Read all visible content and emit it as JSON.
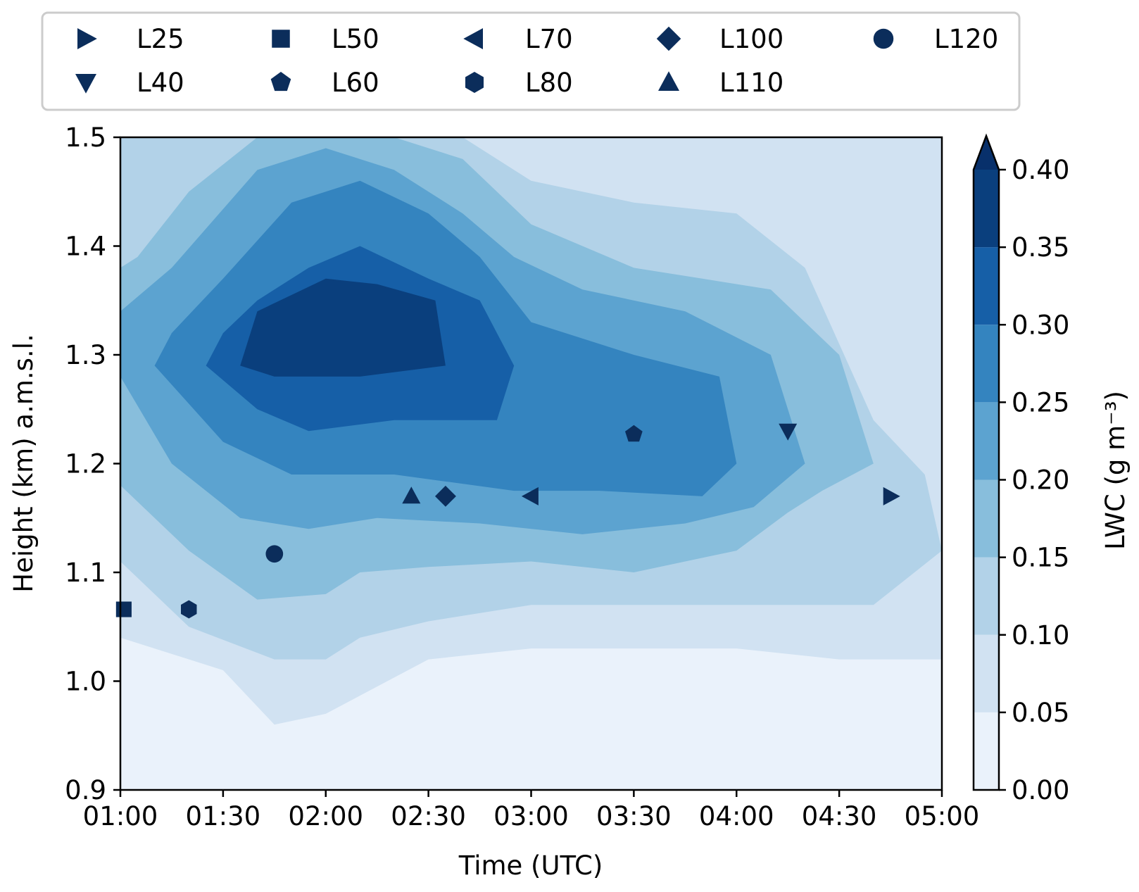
{
  "chart_data": {
    "type": "contour",
    "xlabel": "Time (UTC)",
    "ylabel": "Height (km) a.m.s.l.",
    "colorbar_label": "LWC (g m⁻³)",
    "x_ticks": [
      "01:00",
      "01:30",
      "02:00",
      "02:30",
      "03:00",
      "03:30",
      "04:00",
      "04:30",
      "05:00"
    ],
    "xlim": [
      "01:00",
      "05:00"
    ],
    "y_ticks": [
      "0.9",
      "1.0",
      "1.1",
      "1.2",
      "1.3",
      "1.4",
      "1.5"
    ],
    "ylim": [
      0.9,
      1.5
    ],
    "colorbar": {
      "levels": [
        0.0,
        0.05,
        0.1,
        0.15,
        0.2,
        0.25,
        0.3,
        0.35,
        0.4
      ],
      "tick_labels": [
        "0.00",
        "0.05",
        "0.10",
        "0.15",
        "0.20",
        "0.25",
        "0.30",
        "0.35",
        "0.40"
      ],
      "colors": [
        "#eaf2fb",
        "#d1e2f2",
        "#b2d2e8",
        "#88bedc",
        "#5ca3d0",
        "#3484bf",
        "#165fa7",
        "#0a3f7d"
      ],
      "extend": "max"
    },
    "marker_color": "#0b2d5b",
    "legend": {
      "placement": "top",
      "entries": [
        {
          "name": "L25",
          "marker": "triangle-right"
        },
        {
          "name": "L40",
          "marker": "triangle-down"
        },
        {
          "name": "L50",
          "marker": "square"
        },
        {
          "name": "L60",
          "marker": "pentagon"
        },
        {
          "name": "L70",
          "marker": "triangle-left"
        },
        {
          "name": "L80",
          "marker": "hexagon"
        },
        {
          "name": "L100",
          "marker": "diamond"
        },
        {
          "name": "L110",
          "marker": "triangle-up"
        },
        {
          "name": "L120",
          "marker": "circle"
        }
      ]
    },
    "points": [
      {
        "name": "L25",
        "time": "04:45",
        "height": 1.17
      },
      {
        "name": "L40",
        "time": "04:15",
        "height": 1.23
      },
      {
        "name": "L50",
        "time": "01:01",
        "height": 1.066
      },
      {
        "name": "L60",
        "time": "03:30",
        "height": 1.227
      },
      {
        "name": "L70",
        "time": "03:00",
        "height": 1.17
      },
      {
        "name": "L80",
        "time": "01:20",
        "height": 1.066
      },
      {
        "name": "L100",
        "time": "02:35",
        "height": 1.17
      },
      {
        "name": "L110",
        "time": "02:25",
        "height": 1.17
      },
      {
        "name": "L120",
        "time": "01:45",
        "height": 1.117
      }
    ],
    "contours": [
      {
        "level": 0.05,
        "outline": [
          [
            "01:00",
            1.04
          ],
          [
            "01:30",
            1.01
          ],
          [
            "01:45",
            0.96
          ],
          [
            "02:00",
            0.97
          ],
          [
            "02:30",
            1.02
          ],
          [
            "03:00",
            1.03
          ],
          [
            "04:00",
            1.03
          ],
          [
            "04:30",
            1.02
          ],
          [
            "05:00",
            1.02
          ],
          [
            "05:00",
            1.5
          ],
          [
            "01:00",
            1.5
          ]
        ]
      },
      {
        "level": 0.1,
        "outline": [
          [
            "01:00",
            1.11
          ],
          [
            "01:20",
            1.05
          ],
          [
            "01:45",
            1.02
          ],
          [
            "02:00",
            1.02
          ],
          [
            "02:10",
            1.04
          ],
          [
            "02:30",
            1.055
          ],
          [
            "03:00",
            1.07
          ],
          [
            "03:30",
            1.07
          ],
          [
            "04:00",
            1.07
          ],
          [
            "04:40",
            1.07
          ],
          [
            "05:00",
            1.12
          ],
          [
            "04:55",
            1.19
          ],
          [
            "04:40",
            1.24
          ],
          [
            "04:20",
            1.38
          ],
          [
            "04:00",
            1.43
          ],
          [
            "03:30",
            1.44
          ],
          [
            "03:00",
            1.46
          ],
          [
            "02:40",
            1.5
          ],
          [
            "01:20",
            1.5
          ],
          [
            "01:00",
            1.5
          ]
        ]
      },
      {
        "level": 0.15,
        "outline": [
          [
            "01:00",
            1.18
          ],
          [
            "01:20",
            1.12
          ],
          [
            "01:40",
            1.075
          ],
          [
            "02:00",
            1.08
          ],
          [
            "02:10",
            1.1
          ],
          [
            "02:30",
            1.105
          ],
          [
            "03:00",
            1.11
          ],
          [
            "03:30",
            1.1
          ],
          [
            "04:00",
            1.12
          ],
          [
            "04:15",
            1.155
          ],
          [
            "04:25",
            1.175
          ],
          [
            "04:40",
            1.2
          ],
          [
            "04:30",
            1.3
          ],
          [
            "04:10",
            1.36
          ],
          [
            "03:50",
            1.37
          ],
          [
            "03:30",
            1.38
          ],
          [
            "03:00",
            1.42
          ],
          [
            "02:40",
            1.48
          ],
          [
            "02:20",
            1.5
          ],
          [
            "01:40",
            1.5
          ],
          [
            "01:20",
            1.45
          ],
          [
            "01:05",
            1.39
          ],
          [
            "01:00",
            1.38
          ]
        ]
      },
      {
        "level": 0.2,
        "outline": [
          [
            "01:00",
            1.28
          ],
          [
            "01:15",
            1.2
          ],
          [
            "01:35",
            1.15
          ],
          [
            "01:55",
            1.14
          ],
          [
            "02:15",
            1.15
          ],
          [
            "02:45",
            1.145
          ],
          [
            "03:15",
            1.135
          ],
          [
            "03:45",
            1.145
          ],
          [
            "04:05",
            1.16
          ],
          [
            "04:20",
            1.2
          ],
          [
            "04:10",
            1.3
          ],
          [
            "03:45",
            1.34
          ],
          [
            "03:15",
            1.36
          ],
          [
            "02:55",
            1.39
          ],
          [
            "02:40",
            1.43
          ],
          [
            "02:20",
            1.47
          ],
          [
            "02:00",
            1.49
          ],
          [
            "01:40",
            1.47
          ],
          [
            "01:15",
            1.38
          ],
          [
            "01:00",
            1.34
          ]
        ]
      },
      {
        "level": 0.25,
        "outline": [
          [
            "01:10",
            1.29
          ],
          [
            "01:30",
            1.22
          ],
          [
            "01:50",
            1.19
          ],
          [
            "02:20",
            1.19
          ],
          [
            "02:55",
            1.175
          ],
          [
            "03:20",
            1.175
          ],
          [
            "03:50",
            1.17
          ],
          [
            "04:00",
            1.2
          ],
          [
            "03:55",
            1.28
          ],
          [
            "03:30",
            1.3
          ],
          [
            "03:00",
            1.33
          ],
          [
            "02:45",
            1.39
          ],
          [
            "02:30",
            1.43
          ],
          [
            "02:10",
            1.46
          ],
          [
            "01:50",
            1.44
          ],
          [
            "01:30",
            1.37
          ],
          [
            "01:15",
            1.32
          ]
        ]
      },
      {
        "level": 0.3,
        "outline": [
          [
            "01:25",
            1.29
          ],
          [
            "01:40",
            1.25
          ],
          [
            "01:55",
            1.23
          ],
          [
            "02:20",
            1.24
          ],
          [
            "02:50",
            1.24
          ],
          [
            "02:55",
            1.29
          ],
          [
            "02:45",
            1.35
          ],
          [
            "02:30",
            1.37
          ],
          [
            "02:10",
            1.4
          ],
          [
            "01:55",
            1.38
          ],
          [
            "01:40",
            1.35
          ],
          [
            "01:30",
            1.32
          ]
        ]
      },
      {
        "level": 0.35,
        "outline": [
          [
            "01:35",
            1.29
          ],
          [
            "01:45",
            1.28
          ],
          [
            "02:10",
            1.28
          ],
          [
            "02:35",
            1.29
          ],
          [
            "02:32",
            1.35
          ],
          [
            "02:15",
            1.365
          ],
          [
            "02:00",
            1.37
          ],
          [
            "01:50",
            1.355
          ],
          [
            "01:40",
            1.34
          ]
        ]
      }
    ]
  }
}
